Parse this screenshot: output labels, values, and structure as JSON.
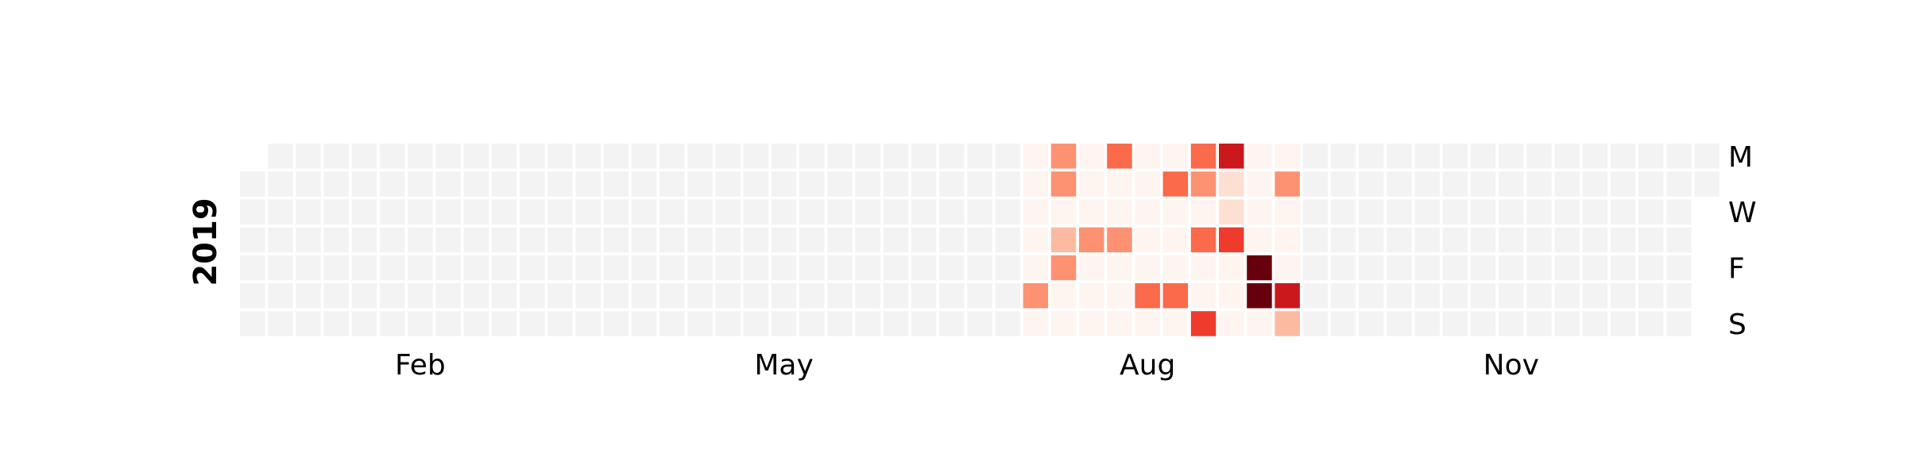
{
  "chart_data": {
    "type": "heatmap",
    "title": "",
    "year_label": "2019",
    "month_labels": [
      "Feb",
      "May",
      "Aug",
      "Nov"
    ],
    "weekday_labels": [
      "M",
      "W",
      "F",
      "S"
    ],
    "empty_color": "#f3f3f3",
    "colormap": "Reds",
    "colormap_stops": [
      "#fff5f0",
      "#fee0d2",
      "#fcbba1",
      "#fc9272",
      "#fb6a4a",
      "#ef3b2c",
      "#cb181d",
      "#a50f15",
      "#67000d"
    ],
    "vmin": 0,
    "vmax": 8,
    "first_day_row": 1,
    "num_weeks": 53,
    "active_weeks_start": 28,
    "active_weeks": [
      [
        0,
        0,
        0,
        0,
        0,
        3,
        0
      ],
      [
        3,
        3,
        0,
        2,
        3,
        0,
        0
      ],
      [
        0,
        0,
        0,
        3,
        0,
        0,
        0
      ],
      [
        4,
        0,
        0,
        3,
        0,
        0,
        0
      ],
      [
        0,
        0,
        0,
        0,
        0,
        4,
        0
      ],
      [
        0,
        4,
        0,
        0,
        0,
        4,
        0
      ],
      [
        4,
        3,
        0,
        4,
        0,
        0,
        5
      ],
      [
        6,
        1,
        1,
        5,
        0,
        0,
        0
      ],
      [
        0,
        0,
        0,
        0,
        8,
        8,
        0
      ],
      [
        0,
        3,
        0,
        0,
        0,
        6,
        2
      ]
    ]
  }
}
